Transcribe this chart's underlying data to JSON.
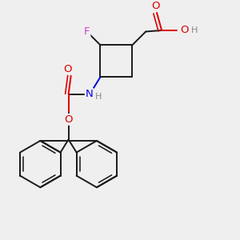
{
  "bg_color": "#efefef",
  "bond_color": "#1a1a1a",
  "bond_width": 1.4,
  "atom_colors": {
    "F": "#cc44cc",
    "O": "#dd0000",
    "N": "#0000dd",
    "H_gray": "#888888",
    "C": "#1a1a1a"
  },
  "font_size_main": 9.5,
  "font_size_small": 8.0,
  "figsize": [
    3.0,
    3.0
  ],
  "dpi": 100
}
